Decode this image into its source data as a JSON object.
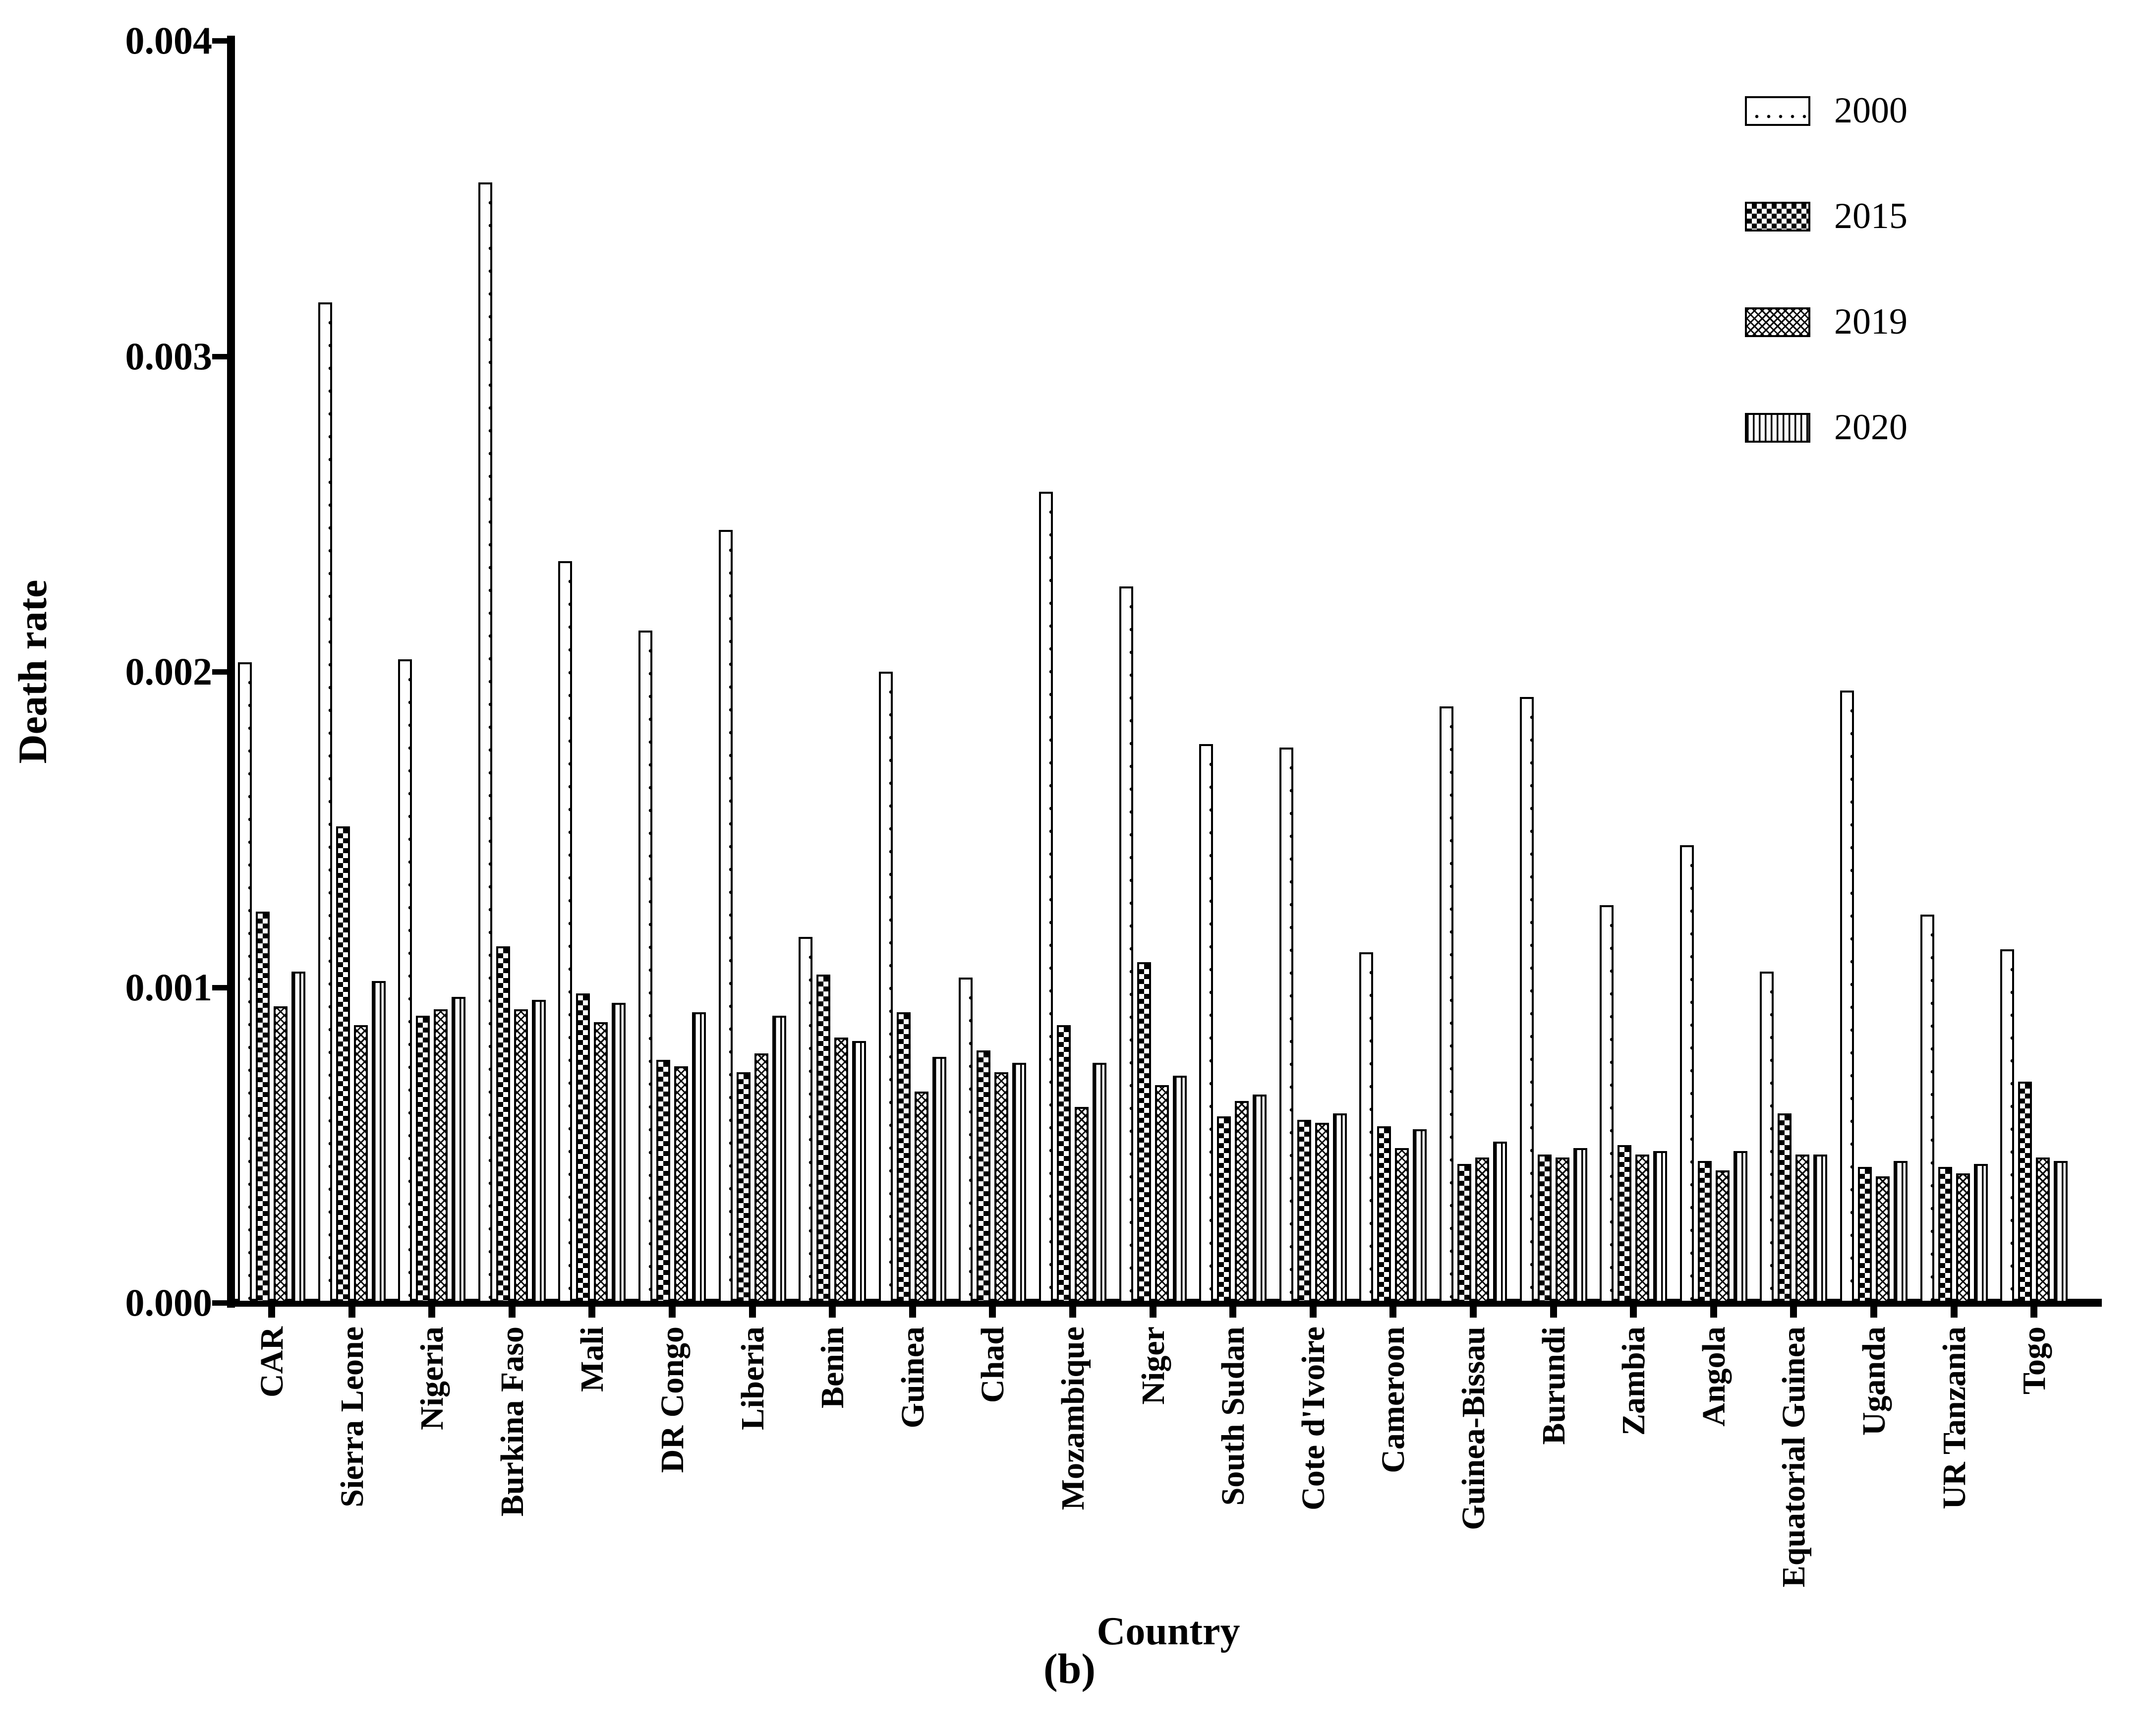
{
  "figure": {
    "caption": "(b)"
  },
  "colors": {
    "foreground": "#000000",
    "background": "#ffffff"
  },
  "chart_data": {
    "type": "bar",
    "title": "",
    "xlabel": "Country",
    "ylabel": "Death rate",
    "ylim": [
      0,
      0.004
    ],
    "ytick_labels": [
      "0.000",
      "0.001",
      "0.002",
      "0.003",
      "0.004"
    ],
    "ytick_values": [
      0,
      0.001,
      0.002,
      0.003,
      0.004
    ],
    "grid": false,
    "legend_position": "top-right",
    "categories": [
      "CAR",
      "Sierra Leone",
      "Nigeria",
      "Burkina Faso",
      "Mali",
      "DR Congo",
      "Liberia",
      "Benin",
      "Guinea",
      "Chad",
      "Mozambique",
      "Niger",
      "South Sudan",
      "Cote d'Ivoire",
      "Cameroon",
      "Guinea-Bissau",
      "Burundi",
      "Zambia",
      "Angola",
      "Equatorial Guinea",
      "Uganda",
      "UR Tanzania",
      "Togo"
    ],
    "series": [
      {
        "name": "2000",
        "pattern": "dotted",
        "values": [
          0.00203,
          0.00317,
          0.00204,
          0.00355,
          0.00235,
          0.00213,
          0.00245,
          0.00116,
          0.002,
          0.00103,
          0.00257,
          0.00227,
          0.00177,
          0.00176,
          0.00111,
          0.00189,
          0.00192,
          0.00126,
          0.00145,
          0.00105,
          0.00194,
          0.00123,
          0.00112
        ]
      },
      {
        "name": "2015",
        "pattern": "checkerboard",
        "values": [
          0.00124,
          0.00151,
          0.00091,
          0.00113,
          0.00098,
          0.00077,
          0.00073,
          0.00104,
          0.00092,
          0.0008,
          0.00088,
          0.00108,
          0.00059,
          0.00058,
          0.00056,
          0.00044,
          0.00047,
          0.0005,
          0.00045,
          0.0006,
          0.00043,
          0.00043,
          0.0007
        ]
      },
      {
        "name": "2019",
        "pattern": "crosshatch",
        "values": [
          0.00094,
          0.00088,
          0.00093,
          0.00093,
          0.00089,
          0.00075,
          0.00079,
          0.00084,
          0.00067,
          0.00073,
          0.00062,
          0.00069,
          0.00064,
          0.00057,
          0.00049,
          0.00046,
          0.00046,
          0.00047,
          0.00042,
          0.00047,
          0.0004,
          0.00041,
          0.00046
        ]
      },
      {
        "name": "2020",
        "pattern": "vstripes",
        "values": [
          0.00105,
          0.00102,
          0.00097,
          0.00096,
          0.00095,
          0.00092,
          0.00091,
          0.00083,
          0.00078,
          0.00076,
          0.00076,
          0.00072,
          0.00066,
          0.0006,
          0.00055,
          0.00051,
          0.00049,
          0.00048,
          0.00048,
          0.00047,
          0.00045,
          0.00044,
          0.00045
        ]
      }
    ]
  }
}
